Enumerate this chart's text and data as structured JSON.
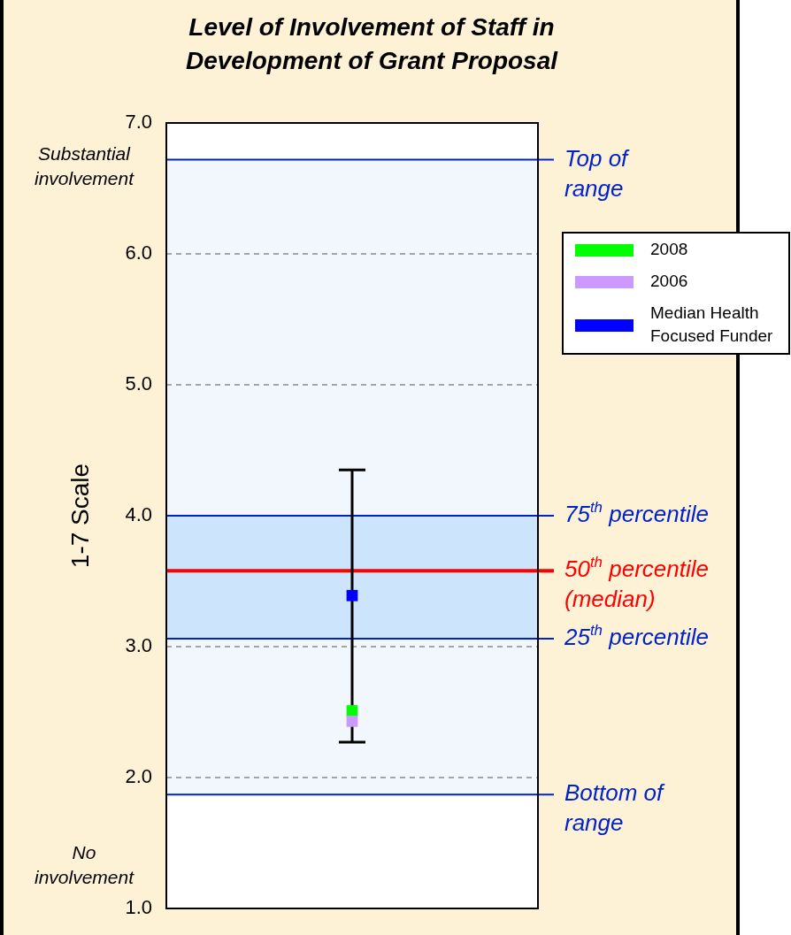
{
  "chart_data": {
    "type": "scatter",
    "title": "Level of Involvement of Staff in\nDevelopment of Grant Proposal",
    "ylabel": "1-7 Scale",
    "categories": [
      null
    ],
    "series": [
      {
        "name": "2008",
        "color": "#00ff00",
        "values": [
          2.51
        ],
        "errors": [
          [
            2.27,
            4.35
          ]
        ]
      },
      {
        "name": "2006",
        "color": "#cc99ff",
        "values": [
          2.43
        ]
      },
      {
        "name": "Median Health\nFocused Funder",
        "color": "#0000ff",
        "values": [
          3.39
        ]
      }
    ],
    "ylim": [
      1,
      7
    ],
    "yticks": [
      {
        "value": 1,
        "label": "1.0"
      },
      {
        "value": 2,
        "label": "2.0"
      },
      {
        "value": 3,
        "label": "3.0"
      },
      {
        "value": 4,
        "label": "4.0"
      },
      {
        "value": 5,
        "label": "5.0"
      },
      {
        "value": 6,
        "label": "6.0"
      },
      {
        "value": 7,
        "label": "7.0"
      }
    ],
    "grid": "y",
    "legend": "right",
    "tick_labels": "y",
    "marker": "square",
    "bands": [
      {
        "axis": "y",
        "from": 1.87,
        "to": 6.72,
        "color": "#f2f7fe"
      },
      {
        "axis": "y",
        "from": 3.06,
        "to": 4.0,
        "color": "#cce5fc"
      }
    ],
    "ref_lines": [
      {
        "axis": "y",
        "value": 6.72,
        "label": "Top of\nrange",
        "color": "#0022cc"
      },
      {
        "axis": "y",
        "value": 4.0,
        "label": "75$^{th}$ percentile",
        "color": "#0022cc"
      },
      {
        "axis": "y",
        "value": 3.58,
        "label": "50$^{th}$ percentile\n(median)",
        "color": "#ff0000"
      },
      {
        "axis": "y",
        "value": 3.06,
        "label": "25$^{th}$ percentile",
        "color": "#0022cc"
      },
      {
        "axis": "y",
        "value": 1.87,
        "label": "Bottom of\nrange",
        "color": "#0022cc"
      }
    ],
    "annotations": [
      "Substantial\ninvolvement",
      "No\ninvolvement"
    ]
  }
}
